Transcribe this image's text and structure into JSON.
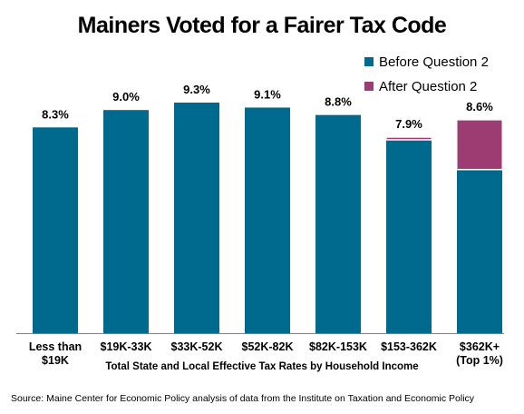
{
  "chart_data": {
    "type": "bar",
    "stacked": true,
    "title": "Mainers Voted for a Fairer Tax Code",
    "xlabel": "Total State and Local Effective Tax Rates by Household Income",
    "ylabel": "",
    "categories": [
      "Less than\n$19K",
      "$19K-33K",
      "$33K-52K",
      "$52K-82K",
      "$82K-153K",
      "$153-362K",
      "$362K+\n(Top 1%)"
    ],
    "series": [
      {
        "name": "Before Question 2",
        "color": "#006a8e",
        "values": [
          8.3,
          9.0,
          9.3,
          9.1,
          8.8,
          7.8,
          6.6
        ]
      },
      {
        "name": "After Question 2",
        "color": "#9c3c73",
        "values": [
          0,
          0,
          0,
          0,
          0,
          0.1,
          2.0
        ]
      }
    ],
    "data_labels": [
      "8.3%",
      "9.0%",
      "9.3%",
      "9.1%",
      "8.8%",
      "7.9%",
      "8.6%"
    ],
    "ylim": [
      0,
      9.3
    ],
    "grid": false,
    "legend_position": "top-right"
  },
  "source_note": "Source: Maine Center for Economic Policy analysis of data from the Institute on Taxation and Economic Policy"
}
